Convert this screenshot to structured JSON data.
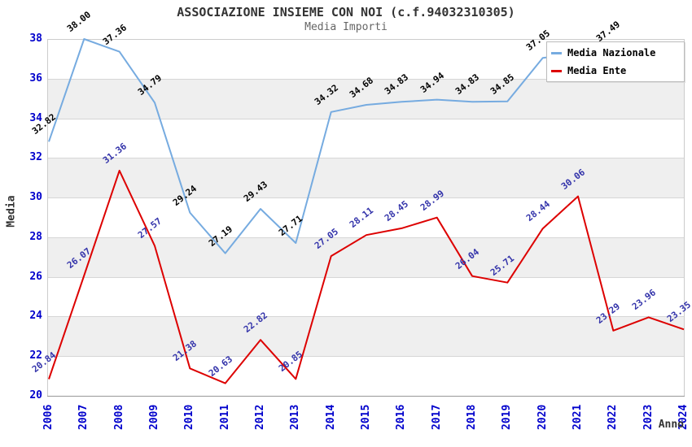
{
  "chart_data": {
    "type": "line",
    "title": "ASSOCIAZIONE INSIEME CON NOI (c.f.94032310305)",
    "subtitle": "Media Importi",
    "xlabel": "Anno",
    "ylabel": "Media",
    "x": [
      2006,
      2007,
      2008,
      2009,
      2010,
      2011,
      2012,
      2013,
      2014,
      2015,
      2016,
      2017,
      2018,
      2019,
      2020,
      2021,
      2022,
      2023,
      2024
    ],
    "ylim": [
      20,
      38
    ],
    "ytick_step": 2,
    "grid": true,
    "bands": "alternating horizontal gray bands every 2 units",
    "legend_position": "top-right",
    "series": [
      {
        "name": "Media Nazionale",
        "color": "#76abe0",
        "label_color": "#000000",
        "values": [
          32.82,
          38.0,
          37.36,
          34.79,
          29.24,
          27.19,
          29.43,
          27.71,
          34.32,
          34.68,
          34.83,
          34.94,
          34.83,
          34.85,
          37.05,
          null,
          37.49,
          null,
          null
        ]
      },
      {
        "name": "Media Ente",
        "color": "#dd0000",
        "label_color": "#3333aa",
        "values": [
          20.84,
          26.07,
          31.36,
          27.57,
          21.38,
          20.63,
          22.82,
          20.85,
          27.05,
          28.11,
          28.45,
          28.99,
          26.04,
          25.71,
          28.44,
          30.06,
          23.29,
          23.96,
          23.35
        ]
      }
    ]
  },
  "colors": {
    "tick_label": "#0000cc",
    "axis_title": "#333333",
    "title": "#333333",
    "subtitle": "#666666",
    "band": "#efefef",
    "gridline": "#d6d6d6",
    "axis_line": "#999999",
    "plot_border": "#cccccc",
    "legend_bg": "#ffffff",
    "legend_border": "#bbbbbb"
  }
}
